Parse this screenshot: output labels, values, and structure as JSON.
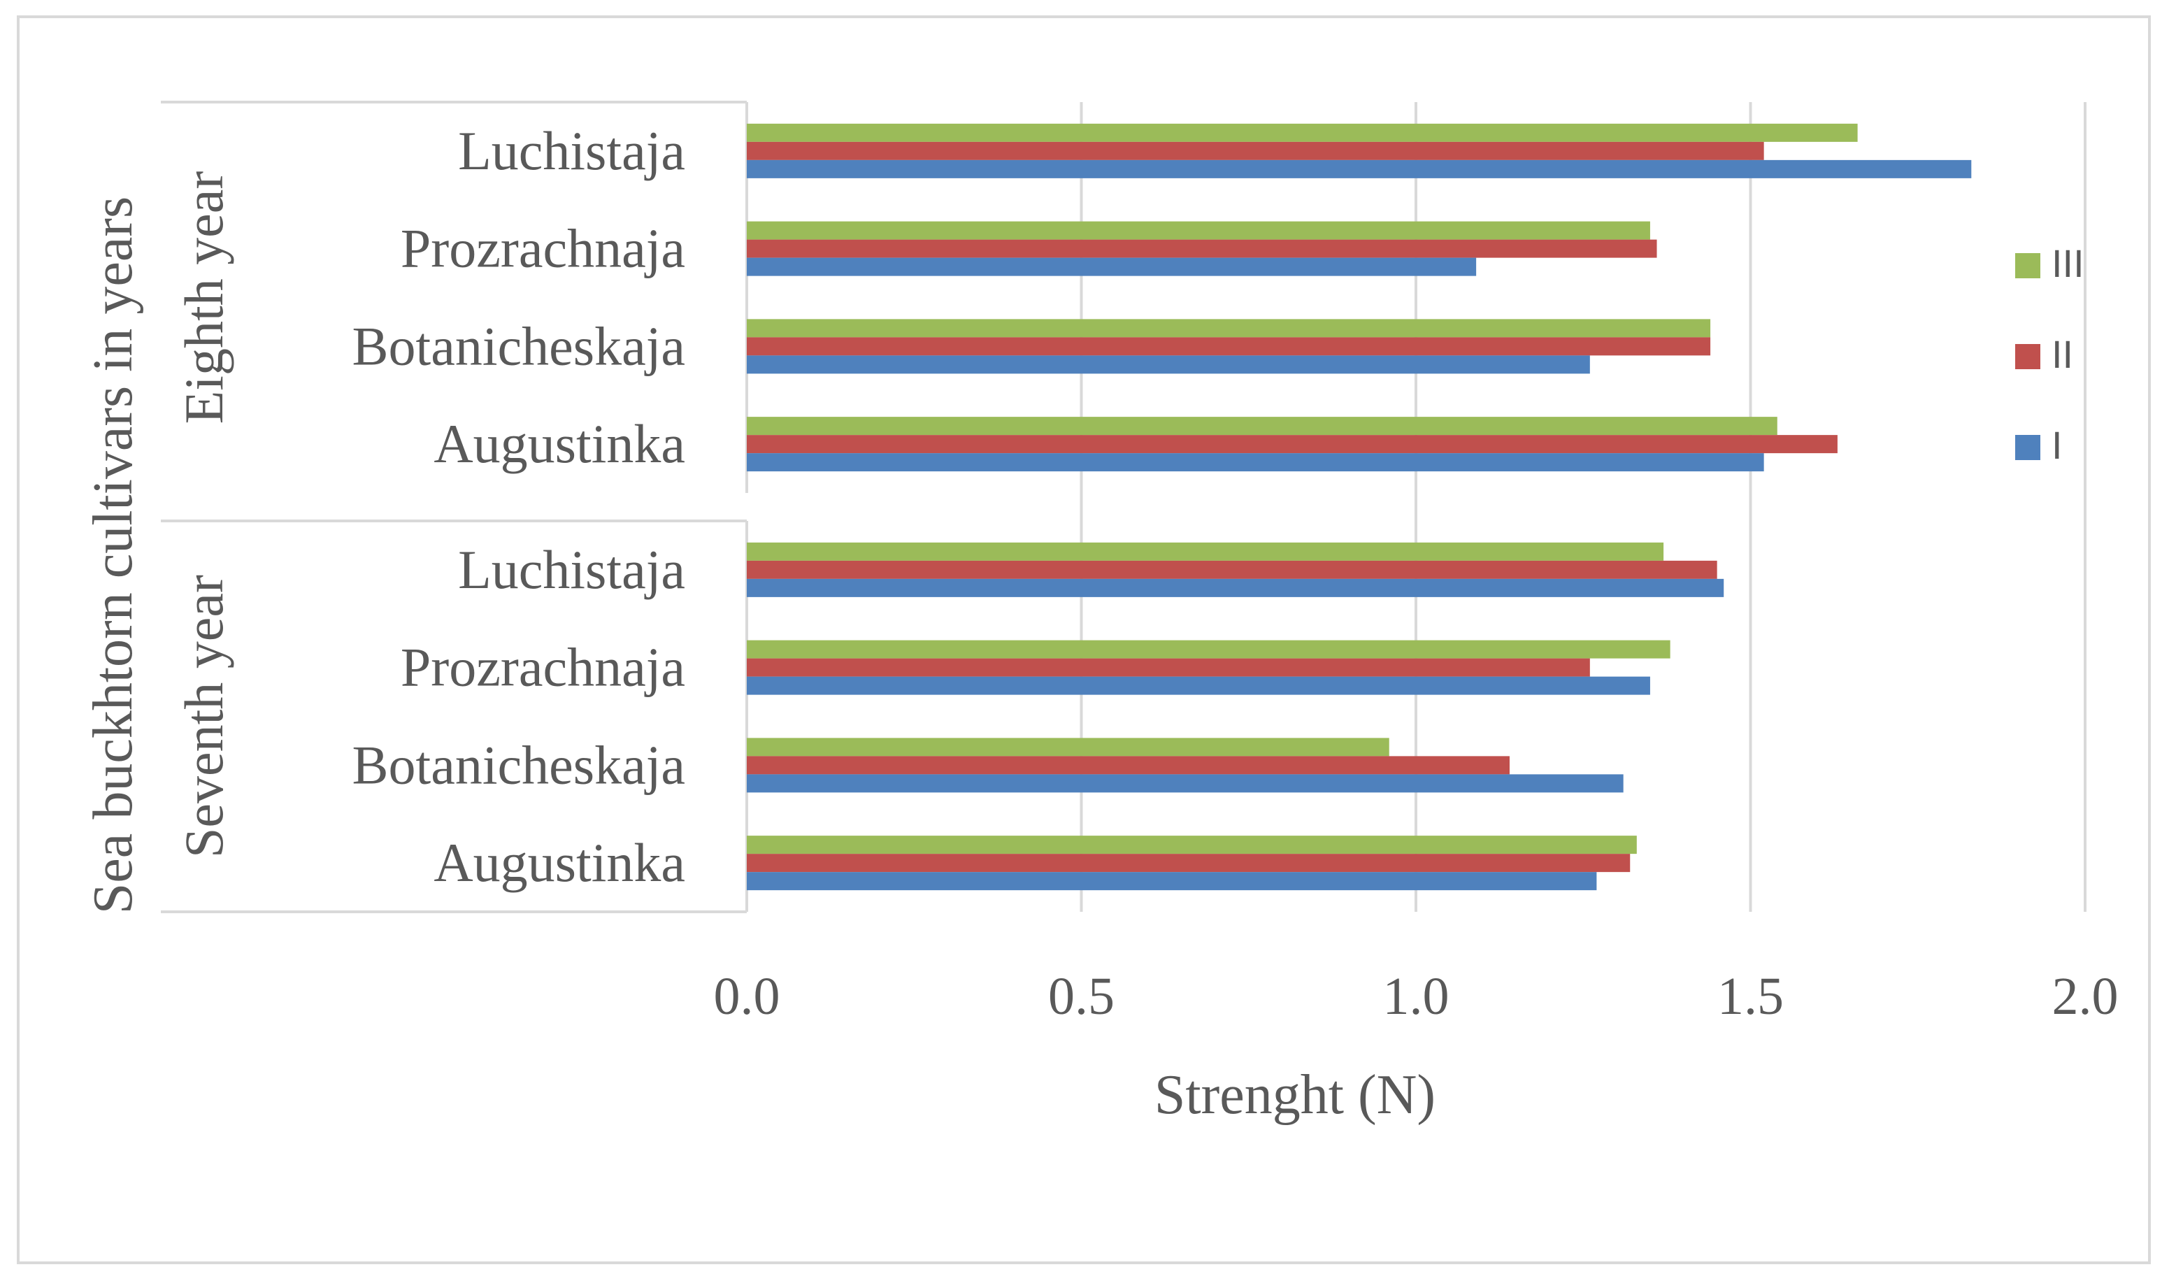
{
  "chart_data": {
    "type": "bar",
    "orientation": "horizontal",
    "xlabel": "Strenght (N)",
    "ylabel": "Sea buckhtorn cultivars in years",
    "xlim": [
      0,
      2.0
    ],
    "xticks": [
      "0.0",
      "0.5",
      "1.0",
      "1.5",
      "2.0"
    ],
    "grid": "vertical",
    "legend_position": "right",
    "groups": [
      {
        "name": "Eighth year",
        "categories": [
          "Luchistaja",
          "Prozrachnaja",
          "Botanicheskaja",
          "Augustinka"
        ]
      },
      {
        "name": "Seventh year",
        "categories": [
          "Luchistaja",
          "Prozrachnaja",
          "Botanicheskaja",
          "Augustinka"
        ]
      }
    ],
    "series": [
      {
        "name": "III",
        "color": "#9bbb59",
        "values": [
          1.66,
          1.35,
          1.44,
          1.54,
          1.37,
          1.38,
          0.96,
          1.33
        ]
      },
      {
        "name": "II",
        "color": "#c0504d",
        "values": [
          1.52,
          1.36,
          1.44,
          1.63,
          1.45,
          1.26,
          1.14,
          1.32
        ]
      },
      {
        "name": "I",
        "color": "#4f81bd",
        "values": [
          1.83,
          1.09,
          1.26,
          1.52,
          1.46,
          1.35,
          1.31,
          1.27
        ]
      }
    ]
  }
}
